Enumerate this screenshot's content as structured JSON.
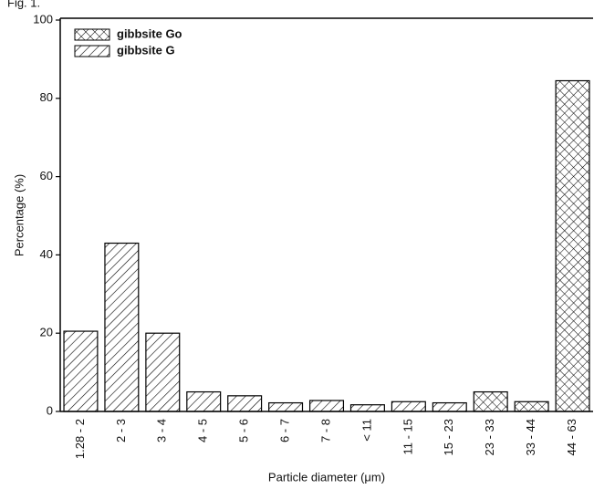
{
  "chart_data": {
    "type": "bar",
    "figure_label": "Fig. 1.",
    "x_label": "Particle diameter (μm)",
    "y_label": "Percentage (%)",
    "categories": [
      "1.28 - 2",
      "2 - 3",
      "3 - 4",
      "4 - 5",
      "5 - 6",
      "6 - 7",
      "7 - 8",
      "< 11",
      "11 - 15",
      "15 - 23",
      "23 - 33",
      "33 - 44",
      "44 - 63"
    ],
    "series": [
      {
        "name": "gibbsite Go",
        "color": "#000000",
        "hatch": "cross",
        "values": [
          null,
          null,
          null,
          null,
          null,
          null,
          null,
          null,
          null,
          null,
          5,
          2.5,
          84.5
        ]
      },
      {
        "name": "gibbsite G",
        "color": "#000000",
        "hatch": "diagonal",
        "values": [
          20.5,
          43,
          20,
          5,
          4,
          2.2,
          2.8,
          1.7,
          2.5,
          2.2,
          null,
          null,
          null
        ]
      }
    ],
    "ylim": [
      0,
      100
    ],
    "yticks": [
      0,
      20,
      40,
      60,
      80,
      100
    ],
    "grid": false
  }
}
